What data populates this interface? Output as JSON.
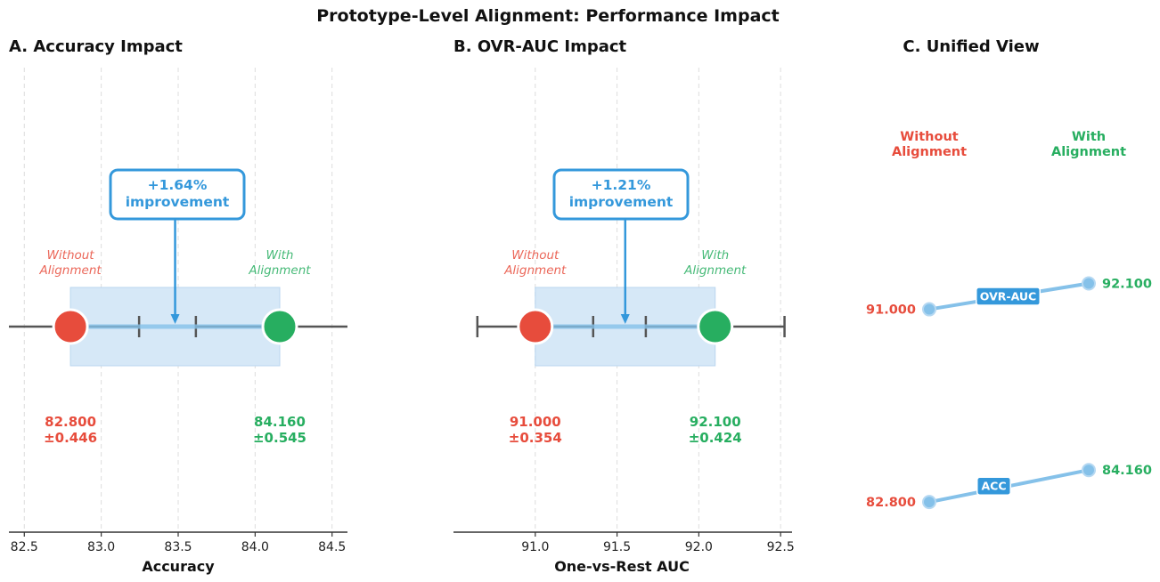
{
  "figure_title": "Prototype-Level Alignment: Performance Impact",
  "colors": {
    "without": "#e74c3c",
    "with": "#27ae60",
    "accent": "#3498db",
    "axis": "#333333",
    "errorbar": "#555555",
    "grid": "#dddddd",
    "range_fill": "#d6e8f7",
    "connector": "#85c1e9"
  },
  "chart_data": [
    {
      "type": "dumbbell",
      "panel": "A",
      "title": "A. Accuracy Impact",
      "xlabel": "Accuracy",
      "xlim": [
        82.4,
        84.6
      ],
      "ticks": [
        82.5,
        83.0,
        83.5,
        84.0,
        84.5
      ],
      "tick_labels": [
        "82.5",
        "83.0",
        "83.5",
        "84.0",
        "84.5"
      ],
      "grid": true,
      "series": [
        {
          "name": "Without Alignment",
          "label_lines": [
            "Without",
            "Alignment"
          ],
          "mean": 82.8,
          "std": 0.446,
          "value_text": "82.800",
          "std_text": "±0.446"
        },
        {
          "name": "With Alignment",
          "label_lines": [
            "With",
            "Alignment"
          ],
          "mean": 84.16,
          "std": 0.545,
          "value_text": "84.160",
          "std_text": "±0.545"
        }
      ],
      "annotation_lines": [
        "+1.64%",
        "improvement"
      ]
    },
    {
      "type": "dumbbell",
      "panel": "B",
      "title": "B. OVR-AUC Impact",
      "xlabel": "One-vs-Rest AUC",
      "xlim": [
        90.5,
        92.57
      ],
      "ticks": [
        91.0,
        91.5,
        92.0,
        92.5
      ],
      "tick_labels": [
        "91.0",
        "91.5",
        "92.0",
        "92.5"
      ],
      "grid": true,
      "series": [
        {
          "name": "Without Alignment",
          "label_lines": [
            "Without",
            "Alignment"
          ],
          "mean": 91.0,
          "std": 0.354,
          "value_text": "91.000",
          "std_text": "±0.354"
        },
        {
          "name": "With Alignment",
          "label_lines": [
            "With",
            "Alignment"
          ],
          "mean": 92.1,
          "std": 0.424,
          "value_text": "92.100",
          "std_text": "±0.424"
        }
      ],
      "annotation_lines": [
        "+1.21%",
        "improvement"
      ]
    },
    {
      "type": "slope",
      "panel": "C",
      "title": "C. Unified View",
      "left_header_lines": [
        "Without",
        "Alignment"
      ],
      "right_header_lines": [
        "With",
        "Alignment"
      ],
      "ylim": [
        82.2,
        92.8
      ],
      "metrics": [
        {
          "name": "OVR-AUC",
          "without": 91.0,
          "with": 92.1,
          "without_text": "91.000",
          "with_text": "92.100"
        },
        {
          "name": "ACC",
          "without": 82.8,
          "with": 84.16,
          "without_text": "82.800",
          "with_text": "84.160"
        }
      ]
    }
  ]
}
